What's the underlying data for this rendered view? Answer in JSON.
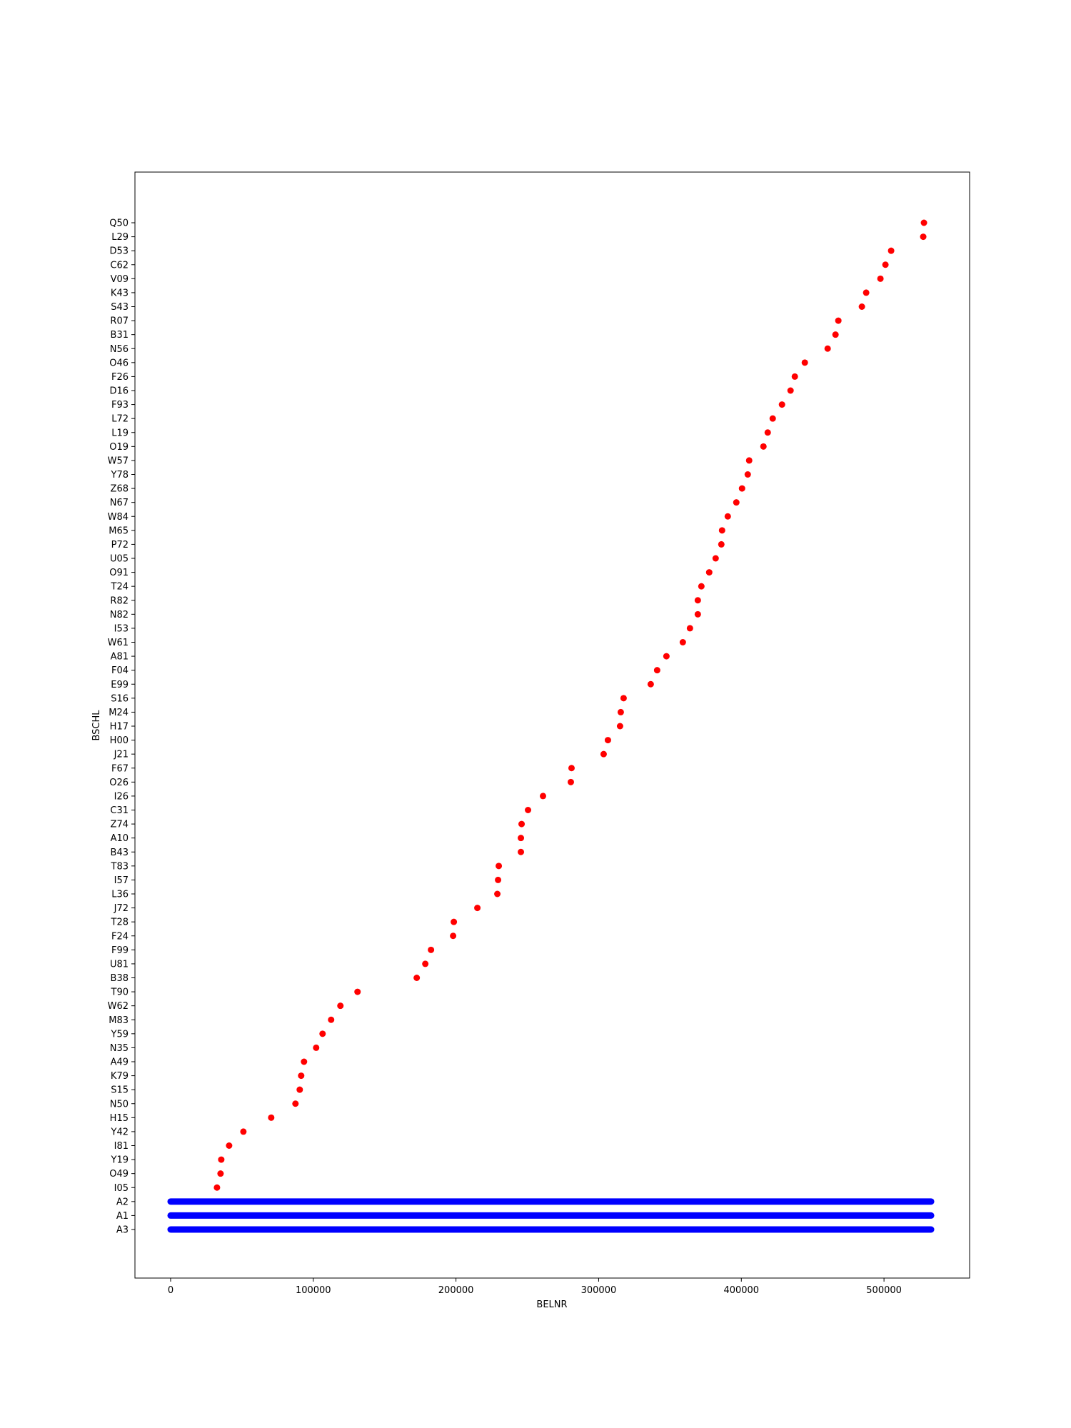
{
  "chart_data": {
    "type": "scatter",
    "title": "",
    "xlabel": "BELNR",
    "ylabel": "BSCHL",
    "xlim": [
      -25000,
      560000
    ],
    "x_ticks": [
      0,
      100000,
      200000,
      300000,
      400000,
      500000
    ],
    "y_categories": [
      "A3",
      "A1",
      "A2",
      "I05",
      "O49",
      "Y19",
      "I81",
      "Y42",
      "H15",
      "N50",
      "S15",
      "K79",
      "A49",
      "N35",
      "Y59",
      "M83",
      "W62",
      "T90",
      "B38",
      "U81",
      "F99",
      "F24",
      "T28",
      "J72",
      "L36",
      "I57",
      "T83",
      "B43",
      "A10",
      "Z74",
      "C31",
      "I26",
      "O26",
      "F67",
      "J21",
      "H00",
      "H17",
      "M24",
      "S16",
      "E99",
      "F04",
      "A81",
      "W61",
      "I53",
      "N82",
      "R82",
      "T24",
      "O91",
      "U05",
      "P72",
      "M65",
      "W84",
      "N67",
      "Z68",
      "Y78",
      "W57",
      "O19",
      "L19",
      "L72",
      "F93",
      "D16",
      "F26",
      "O46",
      "N56",
      "B31",
      "R07",
      "S43",
      "K43",
      "V09",
      "C62",
      "D53",
      "L29",
      "Q50"
    ],
    "grid": false,
    "legend": "none",
    "series": [
      {
        "color": "#0000ff",
        "marker_fill": "dense_band",
        "x_range": [
          0,
          533000
        ],
        "y": [
          "A3",
          "A1",
          "A2"
        ]
      },
      {
        "color": "#ff0000",
        "points": [
          {
            "x": 32500,
            "y": "I05"
          },
          {
            "x": 35000,
            "y": "O49"
          },
          {
            "x": 35500,
            "y": "Y19"
          },
          {
            "x": 41000,
            "y": "I81"
          },
          {
            "x": 51000,
            "y": "Y42"
          },
          {
            "x": 70500,
            "y": "H15"
          },
          {
            "x": 87500,
            "y": "N50"
          },
          {
            "x": 90500,
            "y": "S15"
          },
          {
            "x": 91500,
            "y": "K79"
          },
          {
            "x": 93500,
            "y": "A49"
          },
          {
            "x": 102000,
            "y": "N35"
          },
          {
            "x": 106500,
            "y": "Y59"
          },
          {
            "x": 112500,
            "y": "M83"
          },
          {
            "x": 119000,
            "y": "W62"
          },
          {
            "x": 131000,
            "y": "T90"
          },
          {
            "x": 172500,
            "y": "B38"
          },
          {
            "x": 178500,
            "y": "U81"
          },
          {
            "x": 182500,
            "y": "F99"
          },
          {
            "x": 198000,
            "y": "F24"
          },
          {
            "x": 198500,
            "y": "T28"
          },
          {
            "x": 215000,
            "y": "J72"
          },
          {
            "x": 229000,
            "y": "L36"
          },
          {
            "x": 229500,
            "y": "I57"
          },
          {
            "x": 230000,
            "y": "T83"
          },
          {
            "x": 245500,
            "y": "B43"
          },
          {
            "x": 245500,
            "y": "A10"
          },
          {
            "x": 246000,
            "y": "Z74"
          },
          {
            "x": 250500,
            "y": "C31"
          },
          {
            "x": 261000,
            "y": "I26"
          },
          {
            "x": 280500,
            "y": "O26"
          },
          {
            "x": 281000,
            "y": "F67"
          },
          {
            "x": 303500,
            "y": "J21"
          },
          {
            "x": 306500,
            "y": "H00"
          },
          {
            "x": 315000,
            "y": "H17"
          },
          {
            "x": 315500,
            "y": "M24"
          },
          {
            "x": 317500,
            "y": "S16"
          },
          {
            "x": 336500,
            "y": "E99"
          },
          {
            "x": 341000,
            "y": "F04"
          },
          {
            "x": 347500,
            "y": "A81"
          },
          {
            "x": 359000,
            "y": "W61"
          },
          {
            "x": 364000,
            "y": "I53"
          },
          {
            "x": 369500,
            "y": "N82"
          },
          {
            "x": 369500,
            "y": "R82"
          },
          {
            "x": 372000,
            "y": "T24"
          },
          {
            "x": 377500,
            "y": "O91"
          },
          {
            "x": 382000,
            "y": "U05"
          },
          {
            "x": 386000,
            "y": "P72"
          },
          {
            "x": 386500,
            "y": "M65"
          },
          {
            "x": 390500,
            "y": "W84"
          },
          {
            "x": 396500,
            "y": "N67"
          },
          {
            "x": 400500,
            "y": "Z68"
          },
          {
            "x": 404500,
            "y": "Y78"
          },
          {
            "x": 405500,
            "y": "W57"
          },
          {
            "x": 415500,
            "y": "O19"
          },
          {
            "x": 418500,
            "y": "L19"
          },
          {
            "x": 422000,
            "y": "L72"
          },
          {
            "x": 428500,
            "y": "F93"
          },
          {
            "x": 434500,
            "y": "D16"
          },
          {
            "x": 437500,
            "y": "F26"
          },
          {
            "x": 444500,
            "y": "O46"
          },
          {
            "x": 460500,
            "y": "N56"
          },
          {
            "x": 466000,
            "y": "B31"
          },
          {
            "x": 468000,
            "y": "R07"
          },
          {
            "x": 484500,
            "y": "S43"
          },
          {
            "x": 487500,
            "y": "K43"
          },
          {
            "x": 497500,
            "y": "V09"
          },
          {
            "x": 501000,
            "y": "C62"
          },
          {
            "x": 505000,
            "y": "D53"
          },
          {
            "x": 527500,
            "y": "L29"
          },
          {
            "x": 528000,
            "y": "Q50"
          }
        ]
      }
    ]
  }
}
